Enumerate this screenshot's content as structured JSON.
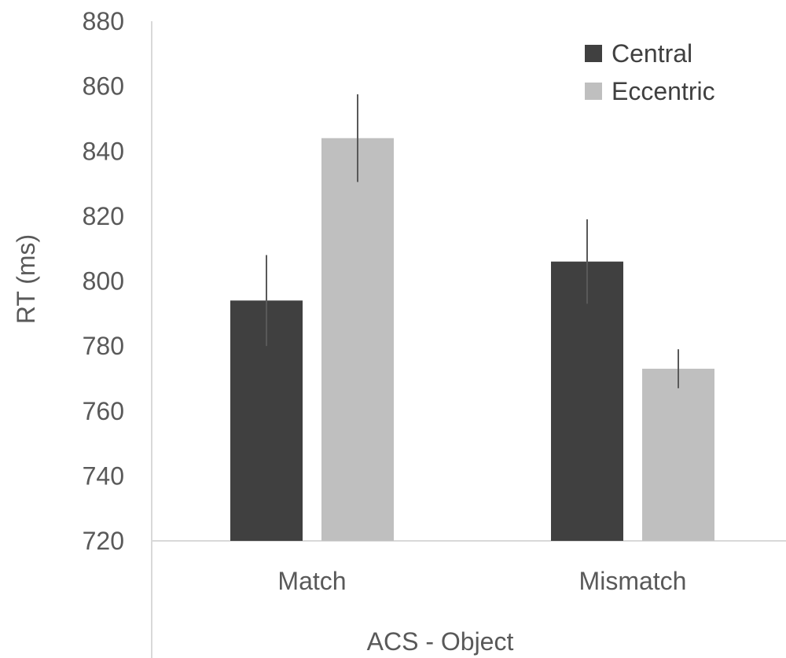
{
  "chart_data": {
    "type": "bar",
    "categories": [
      "Match",
      "Mismatch"
    ],
    "series": [
      {
        "name": "Central",
        "values": [
          794,
          806
        ],
        "error": [
          14,
          13
        ],
        "color": "#404040"
      },
      {
        "name": "Eccentric",
        "values": [
          844,
          773
        ],
        "error": [
          13.5,
          6
        ],
        "color": "#bfbfbf"
      }
    ],
    "xlabel": "ACS - Object",
    "ylabel": "RT (ms)",
    "ylim": [
      720,
      880
    ],
    "yticks": [
      "720",
      "740",
      "760",
      "780",
      "800",
      "820",
      "840",
      "860",
      "880"
    ],
    "grid": false,
    "legend_position": "top-right",
    "axis_color": "#d9d9d9",
    "error_bar_color": "#595959"
  }
}
